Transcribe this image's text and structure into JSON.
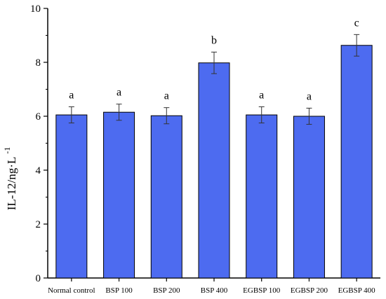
{
  "chart_data": {
    "type": "bar",
    "categories": [
      "Normal control",
      "BSP 100",
      "BSP 200",
      "BSP 400",
      "EGBSP 100",
      "EGBSP 200",
      "EGBSP 400"
    ],
    "values": [
      6.05,
      6.15,
      6.02,
      7.98,
      6.05,
      6.0,
      8.63
    ],
    "errors": [
      0.3,
      0.3,
      0.3,
      0.4,
      0.3,
      0.3,
      0.4
    ],
    "significance": [
      "a",
      "a",
      "a",
      "b",
      "a",
      "a",
      "c"
    ],
    "ylabel": "IL-12/ng·L",
    "ylabel_superscript": "-1",
    "ylim": [
      0,
      10
    ],
    "yticks": [
      0,
      2,
      4,
      6,
      8,
      10
    ],
    "bar_color": "#4D6BF0",
    "grid": false,
    "legend": "none"
  }
}
